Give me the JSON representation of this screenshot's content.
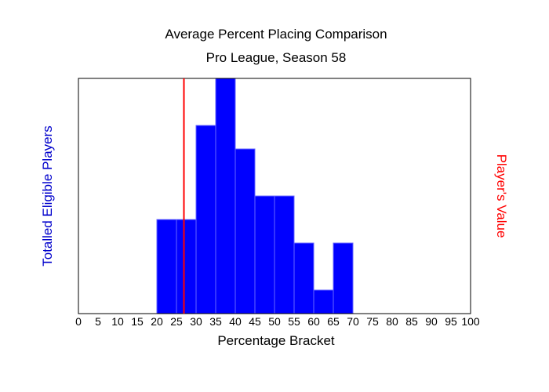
{
  "chart_data": {
    "type": "bar",
    "title": "Average Percent Placing Comparison",
    "subtitle": "Pro League, Season 58",
    "xlabel": "Percentage Bracket",
    "ylabel": "Totalled Eligible Players",
    "y2label": "Player's Value",
    "xlim": [
      0,
      100
    ],
    "ylim": [
      0,
      10
    ],
    "x_ticks": [
      "0",
      "5",
      "10",
      "15",
      "20",
      "25",
      "30",
      "35",
      "40",
      "45",
      "50",
      "55",
      "60",
      "65",
      "70",
      "75",
      "80",
      "85",
      "90",
      "95",
      "100"
    ],
    "bins": [
      [
        20,
        25
      ],
      [
        25,
        30
      ],
      [
        30,
        35
      ],
      [
        35,
        40
      ],
      [
        40,
        45
      ],
      [
        45,
        50
      ],
      [
        50,
        55
      ],
      [
        55,
        60
      ],
      [
        60,
        65
      ],
      [
        65,
        70
      ]
    ],
    "values": [
      4,
      4,
      8,
      10,
      7,
      5,
      5,
      3,
      1,
      3
    ],
    "player_value": 26.9,
    "grid": false,
    "colors": {
      "bars": "#0000ff",
      "bar_edge": "#6666ff",
      "player_line": "#ff0000",
      "ylabel": "#0000cc",
      "y2label": "#ff0000"
    }
  }
}
